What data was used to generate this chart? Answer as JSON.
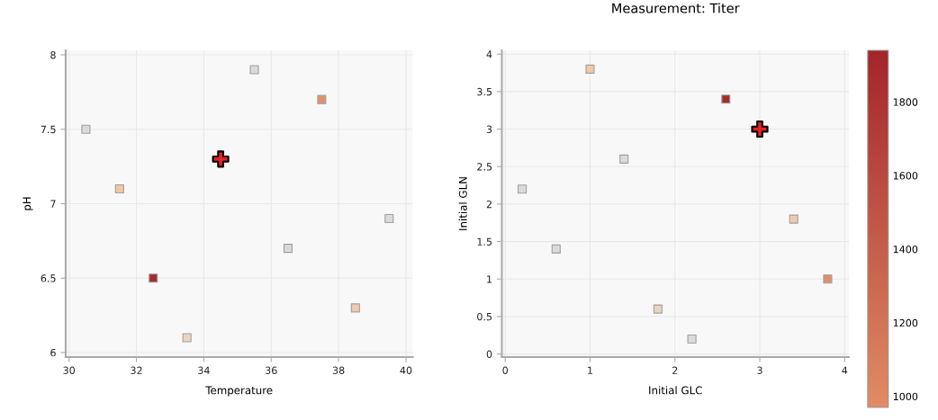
{
  "chart_data": [
    {
      "type": "scatter",
      "xlabel": "Temperature",
      "ylabel": "pH",
      "xlim": [
        29.9,
        40.2
      ],
      "xticks": [
        30,
        32,
        34,
        36,
        38,
        40
      ],
      "ylim": [
        5.97,
        8.03
      ],
      "yticks": [
        6,
        6.5,
        7,
        7.5,
        8
      ],
      "grid": true,
      "marker": "square",
      "series": [
        {
          "x": [
            30.5,
            31.5,
            32.5,
            33.5,
            35.5,
            36.5,
            37.5,
            38.5,
            39.5
          ],
          "values": [
            7.5,
            7.1,
            6.5,
            6.1,
            7.9,
            6.7,
            7.7,
            6.3,
            6.9
          ],
          "colors": [
            "#dadada",
            "#f0c8a4",
            "#a52a2a",
            "#ecd3c0",
            "#dadada",
            "#dadada",
            "#e0916a",
            "#efcbad",
            "#dadada"
          ]
        },
        {
          "x": [
            34.5
          ],
          "values": [
            7.3
          ],
          "color": "#e42222",
          "marker": "cross"
        }
      ]
    },
    {
      "type": "scatter",
      "title": "Measurement: Titer",
      "xlabel": "Initial GLC",
      "ylabel": "Initial GLN",
      "xlim": [
        -0.04,
        4.05
      ],
      "xticks": [
        0,
        1,
        2,
        3,
        4
      ],
      "ylim": [
        -0.04,
        4.05
      ],
      "yticks": [
        0,
        0.5,
        1,
        1.5,
        2,
        2.5,
        3,
        3.5,
        4
      ],
      "grid": true,
      "marker": "square",
      "clim": [
        970,
        1940
      ],
      "cticks": [
        1000,
        1200,
        1400,
        1600,
        1800
      ],
      "series": [
        {
          "x": [
            0.2,
            0.6,
            1.0,
            1.4,
            1.8,
            2.2,
            2.6,
            3.4,
            3.8
          ],
          "values": [
            2.2,
            1.4,
            3.8,
            2.6,
            0.6,
            0.2,
            3.4,
            1.8,
            1.0
          ],
          "colors": [
            "#dadada",
            "#dadada",
            "#f0c8a4",
            "#dadada",
            "#ecd3c0",
            "#dadada",
            "#a52a2a",
            "#efcbad",
            "#e0916a"
          ]
        },
        {
          "x": [
            3.0
          ],
          "values": [
            3.0
          ],
          "color": "#e42222",
          "marker": "cross"
        }
      ]
    }
  ]
}
